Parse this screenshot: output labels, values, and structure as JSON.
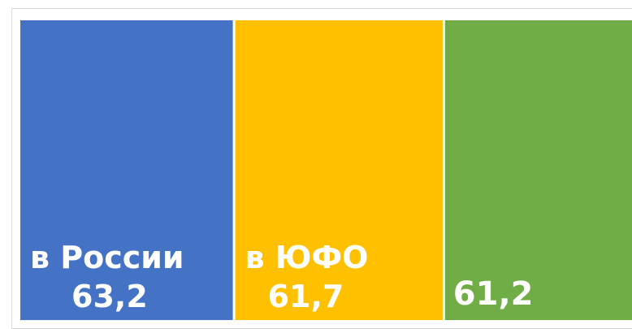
{
  "chart_data": {
    "type": "treemap",
    "title": "",
    "colors": [
      "#4472c4",
      "#ffc000",
      "#70ad47"
    ],
    "categories": [
      "в России",
      "в ЮФО",
      ""
    ],
    "values": [
      63.2,
      61.7,
      61.2
    ],
    "value_labels": [
      "63,2",
      "61,7",
      "61,2"
    ]
  }
}
